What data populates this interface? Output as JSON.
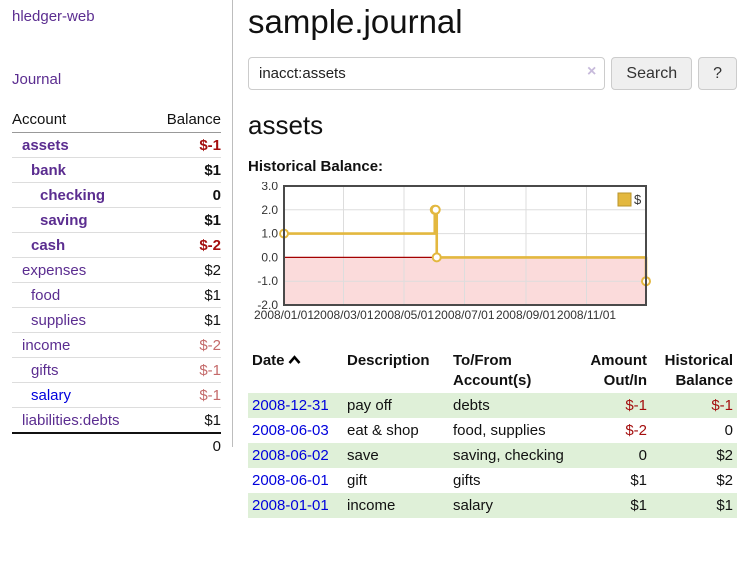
{
  "app": {
    "brand": "hledger-web"
  },
  "colors": {
    "accent_purple": "#5b2d90",
    "link_blue": "#0000dd",
    "negative_red": "#a40e0e",
    "negative_muted_red": "#c46a6a",
    "row_green": "#dff0d8",
    "chart_line_gold": "#e3b83f",
    "chart_negative_fill_pink": "#fbdbdb",
    "zero_line_dark_red": "#a40000"
  },
  "icons": {
    "sort_ascending": "chevron-up",
    "clear_search": "×"
  },
  "sidebar": {
    "journal_link": "Journal",
    "table": {
      "col_account": "Account",
      "col_balance": "Balance"
    },
    "accounts": [
      {
        "label": "assets",
        "indent": 1,
        "bold": true,
        "balance": "$-1",
        "balance_style": "neg"
      },
      {
        "label": "bank",
        "indent": 2,
        "bold": true,
        "balance": "$1",
        "balance_style": ""
      },
      {
        "label": "checking",
        "indent": 3,
        "bold": true,
        "balance": "0",
        "balance_style": ""
      },
      {
        "label": "saving",
        "indent": 3,
        "bold": true,
        "balance": "$1",
        "balance_style": ""
      },
      {
        "label": "cash",
        "indent": 2,
        "bold": true,
        "balance": "$-2",
        "balance_style": "neg"
      },
      {
        "label": "expenses",
        "indent": 1,
        "bold": false,
        "balance": "$2",
        "balance_style": ""
      },
      {
        "label": "food",
        "indent": 2,
        "bold": false,
        "balance": "$1",
        "balance_style": ""
      },
      {
        "label": "supplies",
        "indent": 2,
        "bold": false,
        "balance": "$1",
        "balance_style": ""
      },
      {
        "label": "income",
        "indent": 1,
        "bold": false,
        "balance": "$-2",
        "balance_style": "neg-muted"
      },
      {
        "label": "gifts",
        "indent": 2,
        "bold": false,
        "balance": "$-1",
        "balance_style": "neg-muted"
      },
      {
        "label": "salary",
        "indent": 2,
        "bold": false,
        "link_color": "blue",
        "balance": "$-1",
        "balance_style": "neg-muted"
      },
      {
        "label": "liabilities:debts",
        "indent": 1,
        "bold": false,
        "balance": "$1",
        "balance_style": ""
      }
    ],
    "total": "0"
  },
  "header": {
    "title": "sample.journal"
  },
  "search": {
    "query": "inacct:assets",
    "button_label": "Search",
    "help_label": "?",
    "clear_glyph": "×"
  },
  "account_page": {
    "title": "assets",
    "chart_heading": "Historical Balance:"
  },
  "chart_data": {
    "type": "line",
    "subtype": "step",
    "title": "Historical Balance:",
    "legend": {
      "position": "top-right",
      "entries": [
        "$"
      ]
    },
    "ylim": [
      -2,
      3
    ],
    "x_range_days": [
      1,
      366
    ],
    "grid": true,
    "y_ticks": [
      {
        "value": 3,
        "label": "3.0"
      },
      {
        "value": 2,
        "label": "2.0"
      },
      {
        "value": 1,
        "label": "1.0"
      },
      {
        "value": 0,
        "label": "0.0"
      },
      {
        "value": -1,
        "label": "-1.0"
      },
      {
        "value": -2,
        "label": "-2.0"
      }
    ],
    "x_ticks": [
      {
        "day": 1,
        "label": "2008/01/01"
      },
      {
        "day": 61,
        "label": "2008/03/01"
      },
      {
        "day": 122,
        "label": "2008/05/01"
      },
      {
        "day": 183,
        "label": "2008/07/01"
      },
      {
        "day": 245,
        "label": "2008/09/01"
      },
      {
        "day": 306,
        "label": "2008/11/01"
      }
    ],
    "series": [
      {
        "name": "$",
        "points": [
          {
            "date": "2008-01-01",
            "day": 1,
            "value": 1
          },
          {
            "date": "2008-06-01",
            "day": 153,
            "value": 2
          },
          {
            "date": "2008-06-02",
            "day": 154,
            "value": 2
          },
          {
            "date": "2008-06-03",
            "day": 155,
            "value": 0
          },
          {
            "date": "2008-12-31",
            "day": 366,
            "value": -1
          }
        ]
      }
    ]
  },
  "register": {
    "header": {
      "date": "Date",
      "description": "Description",
      "accounts": "To/From Account(s)",
      "amount": "Amount Out/In",
      "balance": "Historical Balance"
    },
    "sort": {
      "column": "date",
      "direction": "ascending"
    },
    "rows": [
      {
        "date": "2008-12-31",
        "description": "pay off",
        "accounts": "debts",
        "amount": "$-1",
        "amount_negative": true,
        "balance": "$-1",
        "balance_negative": true
      },
      {
        "date": "2008-06-03",
        "description": "eat & shop",
        "accounts": "food, supplies",
        "amount": "$-2",
        "amount_negative": true,
        "balance": "0",
        "balance_negative": false
      },
      {
        "date": "2008-06-02",
        "description": "save",
        "accounts": "saving, checking",
        "amount": "0",
        "amount_negative": false,
        "balance": "$2",
        "balance_negative": false
      },
      {
        "date": "2008-06-01",
        "description": "gift",
        "accounts": "gifts",
        "amount": "$1",
        "amount_negative": false,
        "balance": "$2",
        "balance_negative": false
      },
      {
        "date": "2008-01-01",
        "description": "income",
        "accounts": "salary",
        "amount": "$1",
        "amount_negative": false,
        "balance": "$1",
        "balance_negative": false
      }
    ]
  }
}
